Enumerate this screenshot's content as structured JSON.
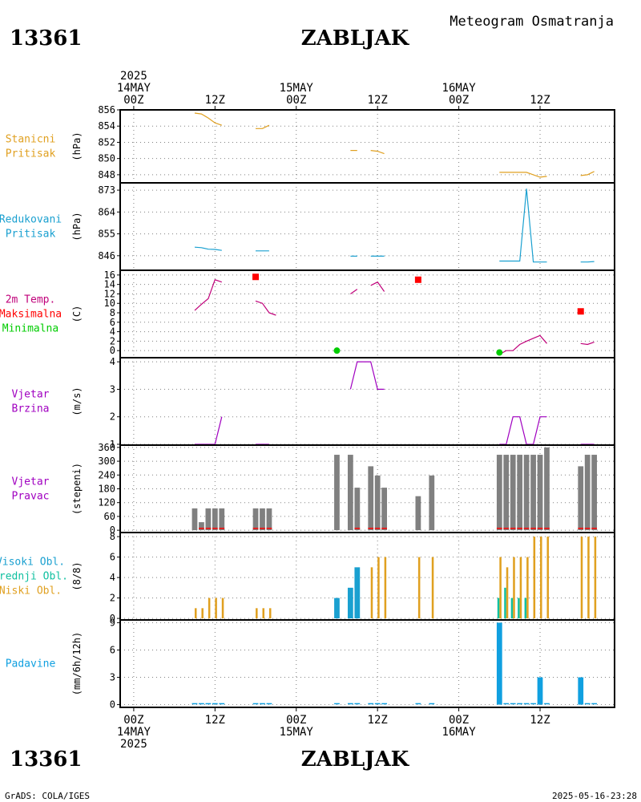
{
  "header": {
    "station_id": "13361",
    "station_name": "ZABLJAK",
    "meteogram_title": "Meteogram Osmatranja"
  },
  "footer": {
    "credit": "GrADS: COLA/IGES",
    "timestamp": "2025-05-16-23:28"
  },
  "time_axis": {
    "hours_min": -2,
    "hours_max": 71,
    "ticks": [
      {
        "hour": 0,
        "top": [
          "2025",
          "14MAY",
          "00Z"
        ],
        "bottom": [
          "00Z",
          "14MAY",
          "2025"
        ]
      },
      {
        "hour": 12,
        "top": [
          "12Z"
        ],
        "bottom": [
          "12Z"
        ]
      },
      {
        "hour": 24,
        "top": [
          "15MAY",
          "00Z"
        ],
        "bottom": [
          "00Z",
          "15MAY"
        ]
      },
      {
        "hour": 36,
        "top": [
          "12Z"
        ],
        "bottom": [
          "12Z"
        ]
      },
      {
        "hour": 48,
        "top": [
          "16MAY",
          "00Z"
        ],
        "bottom": [
          "00Z",
          "16MAY"
        ]
      },
      {
        "hour": 60,
        "top": [
          "12Z"
        ],
        "bottom": [
          "12Z"
        ]
      }
    ]
  },
  "colors": {
    "pressure_station": "#e0a020",
    "pressure_reduced": "#1aa0d0",
    "temp_line": "#c0007a",
    "tmax": "#ff0000",
    "tmin": "#00cc00",
    "wind": "#a000c0",
    "wind_dir_bar": "#808080",
    "cloud_high": "#1aa0d0",
    "cloud_mid": "#10c0a0",
    "cloud_low": "#e0a020",
    "precip": "#10a0e0",
    "grid": "#808080"
  },
  "chart_data": [
    {
      "id": "station-pressure",
      "type": "line",
      "label_lines": [
        "Stanicni",
        "Pritisak"
      ],
      "label_color_key": "pressure_station",
      "ylabel": "(hPa)",
      "ylim": [
        847,
        856
      ],
      "yticks": [
        848,
        850,
        852,
        854,
        856
      ],
      "series": [
        {
          "name": "Stanicni Pritisak",
          "color_key": "pressure_station",
          "segments": [
            [
              [
                9,
                855.6
              ],
              [
                10,
                855.5
              ],
              [
                11,
                855.0
              ],
              [
                12,
                854.4
              ],
              [
                13,
                854.1
              ]
            ],
            [
              [
                18,
                853.7
              ],
              [
                19,
                853.7
              ],
              [
                20,
                854.1
              ]
            ],
            [
              [
                32,
                851.0
              ],
              [
                33,
                851.0
              ]
            ],
            [
              [
                35,
                851.0
              ],
              [
                36,
                850.9
              ],
              [
                37,
                850.6
              ]
            ],
            [
              [
                54,
                848.3
              ],
              [
                58,
                848.3
              ],
              [
                59,
                848.0
              ],
              [
                60,
                847.7
              ],
              [
                61,
                847.8
              ]
            ],
            [
              [
                66,
                847.9
              ],
              [
                67,
                848.0
              ],
              [
                68,
                848.4
              ]
            ]
          ]
        }
      ]
    },
    {
      "id": "reduced-pressure",
      "type": "line",
      "label_lines": [
        "Redukovani",
        "Pritisak"
      ],
      "label_color_key": "pressure_reduced",
      "ylabel": "(hPa)",
      "ylim": [
        840,
        876
      ],
      "yticks": [
        846,
        855,
        864,
        873
      ],
      "series": [
        {
          "name": "Redukovani Pritisak",
          "color_key": "pressure_reduced",
          "segments": [
            [
              [
                9,
                849.5
              ],
              [
                10,
                849.3
              ],
              [
                11,
                848.7
              ],
              [
                12,
                848.6
              ],
              [
                13,
                848.2
              ]
            ],
            [
              [
                18,
                848.0
              ],
              [
                19,
                848.0
              ],
              [
                20,
                848.0
              ]
            ],
            [
              [
                32,
                845.8
              ],
              [
                33,
                845.8
              ]
            ],
            [
              [
                35,
                845.8
              ],
              [
                36,
                845.8
              ],
              [
                37,
                845.8
              ]
            ],
            [
              [
                54,
                843.8
              ],
              [
                57,
                843.8
              ],
              [
                58,
                873.6
              ],
              [
                59,
                843.4
              ],
              [
                61,
                843.4
              ]
            ],
            [
              [
                66,
                843.4
              ],
              [
                67,
                843.4
              ],
              [
                68,
                843.6
              ]
            ]
          ]
        }
      ]
    },
    {
      "id": "temperature",
      "type": "line",
      "label_lines": [
        "2m Temp.",
        "Maksimalna",
        "Minimalna"
      ],
      "label_color_keys": [
        "temp_line",
        "tmax",
        "tmin"
      ],
      "ylabel": "(C)",
      "ylim": [
        -1.5,
        17
      ],
      "yticks": [
        0,
        2,
        4,
        6,
        8,
        10,
        12,
        14,
        16
      ],
      "series": [
        {
          "name": "2m Temp.",
          "color_key": "temp_line",
          "segments": [
            [
              [
                9,
                8.5
              ],
              [
                10,
                9.8
              ],
              [
                11,
                11.0
              ],
              [
                12,
                15.0
              ],
              [
                13,
                14.5
              ]
            ],
            [
              [
                18,
                10.5
              ],
              [
                19,
                10.0
              ],
              [
                20,
                8.0
              ],
              [
                21,
                7.5
              ]
            ],
            [
              [
                32,
                12.0
              ],
              [
                33,
                13.0
              ]
            ],
            [
              [
                35,
                13.8
              ],
              [
                36,
                14.5
              ],
              [
                37,
                12.5
              ]
            ],
            [
              [
                54,
                -0.8
              ],
              [
                55,
                0.0
              ],
              [
                56,
                0.0
              ],
              [
                57,
                1.3
              ],
              [
                58,
                2.0
              ],
              [
                59,
                2.6
              ],
              [
                60,
                3.2
              ],
              [
                61,
                1.5
              ]
            ],
            [
              [
                66,
                1.5
              ],
              [
                67,
                1.3
              ],
              [
                68,
                1.8
              ]
            ]
          ]
        },
        {
          "name": "Maksimalna",
          "color_key": "tmax",
          "marker": "square",
          "points": [
            [
              18,
              15.6
            ],
            [
              42,
              15.0
            ],
            [
              66,
              8.3
            ]
          ]
        },
        {
          "name": "Minimalna",
          "color_key": "tmin",
          "marker": "circle",
          "points": [
            [
              30,
              0.0
            ],
            [
              54,
              -0.4
            ]
          ]
        }
      ]
    },
    {
      "id": "wind-speed",
      "type": "line",
      "label_lines": [
        "Vjetar",
        "Brzina"
      ],
      "label_color_key": "wind",
      "ylabel": "(m/s)",
      "ylim": [
        0.97,
        4.15
      ],
      "yticks": [
        1,
        2,
        3,
        4
      ],
      "series": [
        {
          "name": "Vjetar Brzina",
          "color_key": "wind",
          "segments": [
            [
              [
                9,
                1
              ],
              [
                11,
                1
              ],
              [
                12,
                1
              ],
              [
                13,
                2
              ]
            ],
            [
              [
                18,
                1
              ],
              [
                19,
                1
              ],
              [
                20,
                1
              ]
            ],
            [
              [
                32,
                3
              ],
              [
                33,
                4
              ],
              [
                35,
                4
              ],
              [
                36,
                3
              ],
              [
                37,
                3
              ]
            ],
            [
              [
                54,
                1
              ],
              [
                55,
                1
              ],
              [
                56,
                2
              ],
              [
                57,
                2
              ],
              [
                58,
                1
              ],
              [
                59,
                1
              ],
              [
                60,
                2
              ],
              [
                61,
                2
              ]
            ],
            [
              [
                66,
                1
              ],
              [
                67,
                1
              ],
              [
                68,
                1
              ]
            ]
          ]
        }
      ]
    },
    {
      "id": "wind-direction",
      "type": "bar",
      "label_lines": [
        "Vjetar",
        "Pravac"
      ],
      "label_color_key": "wind",
      "ylabel": "(stepeni)",
      "ylim": [
        -10,
        370
      ],
      "yticks": [
        0,
        60,
        120,
        180,
        240,
        300,
        360
      ],
      "bar_width_hours": 0.8,
      "series": [
        {
          "name": "Vjetar Pravac",
          "color_key": "wind_dir_bar",
          "x": [
            9,
            10,
            11,
            12,
            13,
            18,
            19,
            20,
            30,
            32,
            33,
            35,
            36,
            37,
            42,
            44,
            54,
            55,
            56,
            57,
            58,
            59,
            60,
            61,
            66,
            67,
            68
          ],
          "values": [
            95,
            35,
            95,
            95,
            95,
            95,
            95,
            95,
            328,
            328,
            185,
            278,
            238,
            185,
            148,
            238,
            328,
            328,
            328,
            328,
            328,
            328,
            328,
            360,
            278,
            328,
            328
          ]
        },
        {
          "name": "calm",
          "color_key": "tmax",
          "marker": "tick",
          "x": [
            10,
            11,
            12,
            13,
            18,
            19,
            20,
            33,
            35,
            36,
            37,
            54,
            55,
            56,
            57,
            58,
            59,
            60,
            61,
            66,
            67,
            68
          ],
          "values": [
            8,
            8,
            8,
            8,
            8,
            8,
            8,
            8,
            8,
            8,
            8,
            8,
            8,
            8,
            8,
            8,
            8,
            8,
            8,
            8,
            8,
            8
          ]
        }
      ]
    },
    {
      "id": "clouds",
      "type": "bar",
      "label_lines": [
        "Visoki Obl.",
        "Srednji Obl.",
        "Niski Obl."
      ],
      "label_color_keys": [
        "cloud_high",
        "cloud_mid",
        "cloud_low"
      ],
      "ylabel": "(8/8)",
      "ylim": [
        -0.15,
        8.4
      ],
      "yticks": [
        0,
        2,
        4,
        6,
        8
      ],
      "series": [
        {
          "name": "Visoki Obl.",
          "color_key": "cloud_high",
          "bar_width_hours": 0.8,
          "x": [
            30,
            32,
            33
          ],
          "values": [
            2,
            3,
            5
          ]
        },
        {
          "name": "Srednji Obl.",
          "color_key": "cloud_mid",
          "bar_width_hours": 0.3,
          "offset_hours": -0.15,
          "x": [
            54,
            55,
            56,
            57,
            58
          ],
          "values": [
            2,
            3,
            2,
            2,
            2
          ]
        },
        {
          "name": "Niski Obl.",
          "color_key": "cloud_low",
          "bar_width_hours": 0.3,
          "offset_hours": 0.15,
          "x": [
            9,
            10,
            11,
            12,
            13,
            18,
            19,
            20,
            35,
            36,
            37,
            42,
            44,
            54,
            55,
            56,
            57,
            58,
            59,
            60,
            61,
            66,
            67,
            68
          ],
          "values": [
            1,
            1,
            2,
            2,
            2,
            1,
            1,
            1,
            5,
            6,
            6,
            6,
            6,
            6,
            5,
            6,
            6,
            6,
            8,
            8,
            8,
            8,
            8,
            8
          ]
        }
      ]
    },
    {
      "id": "precipitation",
      "type": "bar",
      "label_lines": [
        "Padavine"
      ],
      "label_color_key": "precip",
      "ylabel": "(mm/6h/12h)",
      "ylim": [
        -0.3,
        9.3
      ],
      "yticks": [
        0,
        3,
        6,
        9
      ],
      "bar_width_hours": 0.8,
      "series": [
        {
          "name": "Padavine",
          "color_key": "precip",
          "x": [
            54,
            60,
            66
          ],
          "values": [
            9,
            3,
            3
          ]
        },
        {
          "name": "trace",
          "color_key": "precip",
          "marker": "dash",
          "x": [
            9,
            10,
            11,
            12,
            13,
            18,
            19,
            20,
            30,
            32,
            33,
            35,
            36,
            37,
            42,
            44,
            55,
            56,
            57,
            58,
            59,
            61,
            67,
            68
          ],
          "values": [
            0.1,
            0.1,
            0.1,
            0.1,
            0.1,
            0.1,
            0.1,
            0.1,
            0.1,
            0.1,
            0.1,
            0.1,
            0.1,
            0.1,
            0.1,
            0.1,
            0.1,
            0.1,
            0.1,
            0.1,
            0.1,
            0.1,
            0.1,
            0.1
          ]
        }
      ]
    }
  ]
}
